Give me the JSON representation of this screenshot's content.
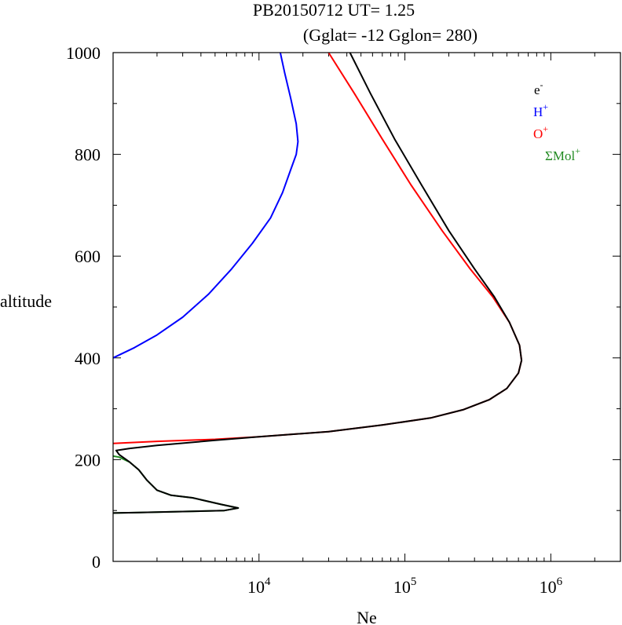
{
  "title": {
    "line1": "PB20150712   UT=  1.25",
    "line2": "(Gglat= -12   Gglon=  280)"
  },
  "chart_data": {
    "type": "line",
    "xlabel": "Ne",
    "ylabel": "altitude",
    "xscale": "log",
    "xlim": [
      1000,
      3000000
    ],
    "ylim": [
      0,
      1000
    ],
    "xticks_major": [
      {
        "value": 10000,
        "base": "10",
        "exp": "4"
      },
      {
        "value": 100000,
        "base": "10",
        "exp": "5"
      },
      {
        "value": 1000000,
        "base": "10",
        "exp": "6"
      }
    ],
    "yticks_major": [
      {
        "value": 0,
        "label": "0"
      },
      {
        "value": 200,
        "label": "200"
      },
      {
        "value": 400,
        "label": "400"
      },
      {
        "value": 600,
        "label": "600"
      },
      {
        "value": 800,
        "label": "800"
      },
      {
        "value": 1000,
        "label": "1000"
      }
    ],
    "ytick_minor_step": 100,
    "legend_position": "top-right",
    "series": [
      {
        "name": "H+",
        "label_base": "H",
        "label_sup": "+",
        "color": "#0000ff",
        "points": [
          [
            1000,
            400
          ],
          [
            1400,
            420
          ],
          [
            2000,
            445
          ],
          [
            3000,
            480
          ],
          [
            4500,
            525
          ],
          [
            6500,
            575
          ],
          [
            9000,
            625
          ],
          [
            12000,
            675
          ],
          [
            14500,
            725
          ],
          [
            16500,
            770
          ],
          [
            18000,
            800
          ],
          [
            18500,
            825
          ],
          [
            18000,
            860
          ],
          [
            16500,
            910
          ],
          [
            15000,
            960
          ],
          [
            14000,
            1000
          ]
        ]
      },
      {
        "name": "O+",
        "label_base": "O",
        "label_sup": "+",
        "color": "#ff0000",
        "points": [
          [
            1000,
            232
          ],
          [
            2000,
            236
          ],
          [
            5000,
            240
          ],
          [
            10000,
            245
          ],
          [
            30000,
            255
          ],
          [
            70000,
            268
          ],
          [
            150000,
            282
          ],
          [
            250000,
            298
          ],
          [
            380000,
            318
          ],
          [
            500000,
            340
          ],
          [
            600000,
            370
          ],
          [
            630000,
            395
          ],
          [
            610000,
            425
          ],
          [
            520000,
            470
          ],
          [
            400000,
            520
          ],
          [
            280000,
            575
          ],
          [
            180000,
            650
          ],
          [
            110000,
            740
          ],
          [
            70000,
            830
          ],
          [
            45000,
            920
          ],
          [
            30000,
            1000
          ]
        ]
      },
      {
        "name": "ΣMol+",
        "label_base": "ΣMol",
        "label_sup": "+",
        "color": "#228b22",
        "points": [
          [
            1000,
            207
          ],
          [
            1100,
            205
          ],
          [
            1300,
            195
          ],
          [
            1500,
            180
          ],
          [
            1700,
            160
          ],
          [
            2000,
            140
          ],
          [
            2500,
            130
          ],
          [
            3500,
            125
          ],
          [
            5500,
            112
          ],
          [
            7200,
            105
          ],
          [
            5800,
            100
          ],
          [
            3000,
            98
          ],
          [
            1500,
            96
          ],
          [
            1000,
            95
          ]
        ]
      },
      {
        "name": "e-",
        "label_base": "e",
        "label_sup": "-",
        "color": "#000000",
        "points": [
          [
            1000,
            95
          ],
          [
            1500,
            96
          ],
          [
            3000,
            98
          ],
          [
            5800,
            100
          ],
          [
            7200,
            105
          ],
          [
            5500,
            112
          ],
          [
            3500,
            125
          ],
          [
            2500,
            130
          ],
          [
            2000,
            140
          ],
          [
            1700,
            160
          ],
          [
            1500,
            180
          ],
          [
            1300,
            195
          ],
          [
            1100,
            210
          ],
          [
            1050,
            218
          ],
          [
            1300,
            222
          ],
          [
            2000,
            228
          ],
          [
            5000,
            238
          ],
          [
            10000,
            245
          ],
          [
            30000,
            255
          ],
          [
            70000,
            268
          ],
          [
            150000,
            282
          ],
          [
            250000,
            298
          ],
          [
            380000,
            318
          ],
          [
            500000,
            340
          ],
          [
            600000,
            370
          ],
          [
            630000,
            395
          ],
          [
            610000,
            425
          ],
          [
            520000,
            470
          ],
          [
            410000,
            520
          ],
          [
            300000,
            575
          ],
          [
            200000,
            650
          ],
          [
            130000,
            740
          ],
          [
            85000,
            830
          ],
          [
            58000,
            920
          ],
          [
            42000,
            1000
          ]
        ]
      }
    ]
  }
}
